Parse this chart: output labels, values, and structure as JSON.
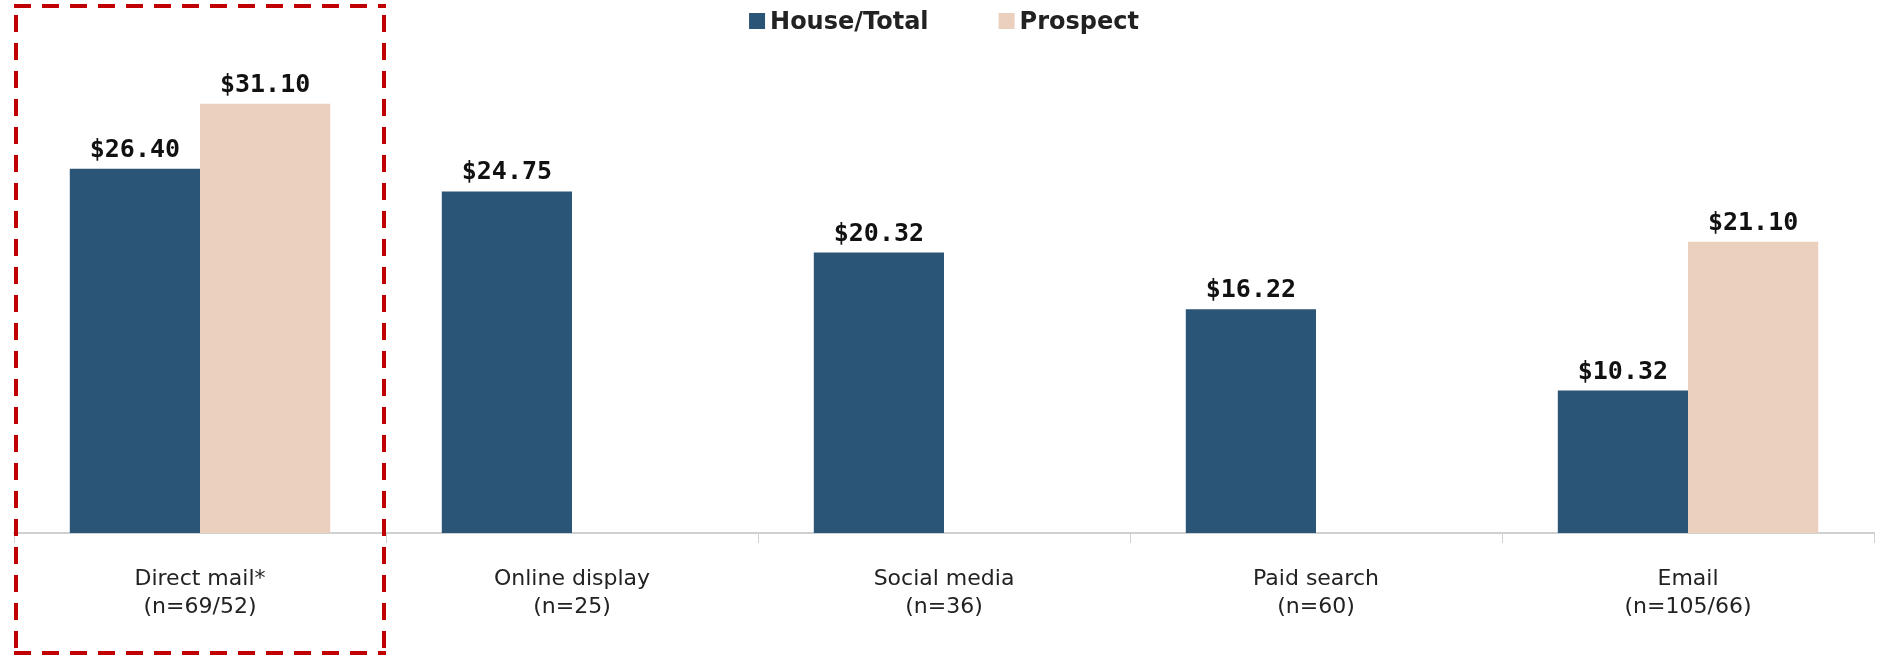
{
  "chart_data": {
    "type": "bar",
    "categories": [
      "Direct mail*\n(n=69/52)",
      "Online display\n(n=25)",
      "Social media\n(n=36)",
      "Paid search\n(n=60)",
      "Email\n(n=105/66)"
    ],
    "series": [
      {
        "name": "House/Total",
        "color": "#2b5577",
        "values": [
          26.4,
          24.75,
          20.32,
          16.22,
          10.32
        ],
        "value_labels": [
          "$26.40",
          "$24.75",
          "$20.32",
          "$16.22",
          "$10.32"
        ]
      },
      {
        "name": "Prospect",
        "color": "#ebd0bd",
        "values": [
          31.1,
          null,
          null,
          null,
          21.1
        ],
        "value_labels": [
          "$31.10",
          null,
          null,
          null,
          "$21.10"
        ]
      }
    ],
    "legend": "top"
  }
}
